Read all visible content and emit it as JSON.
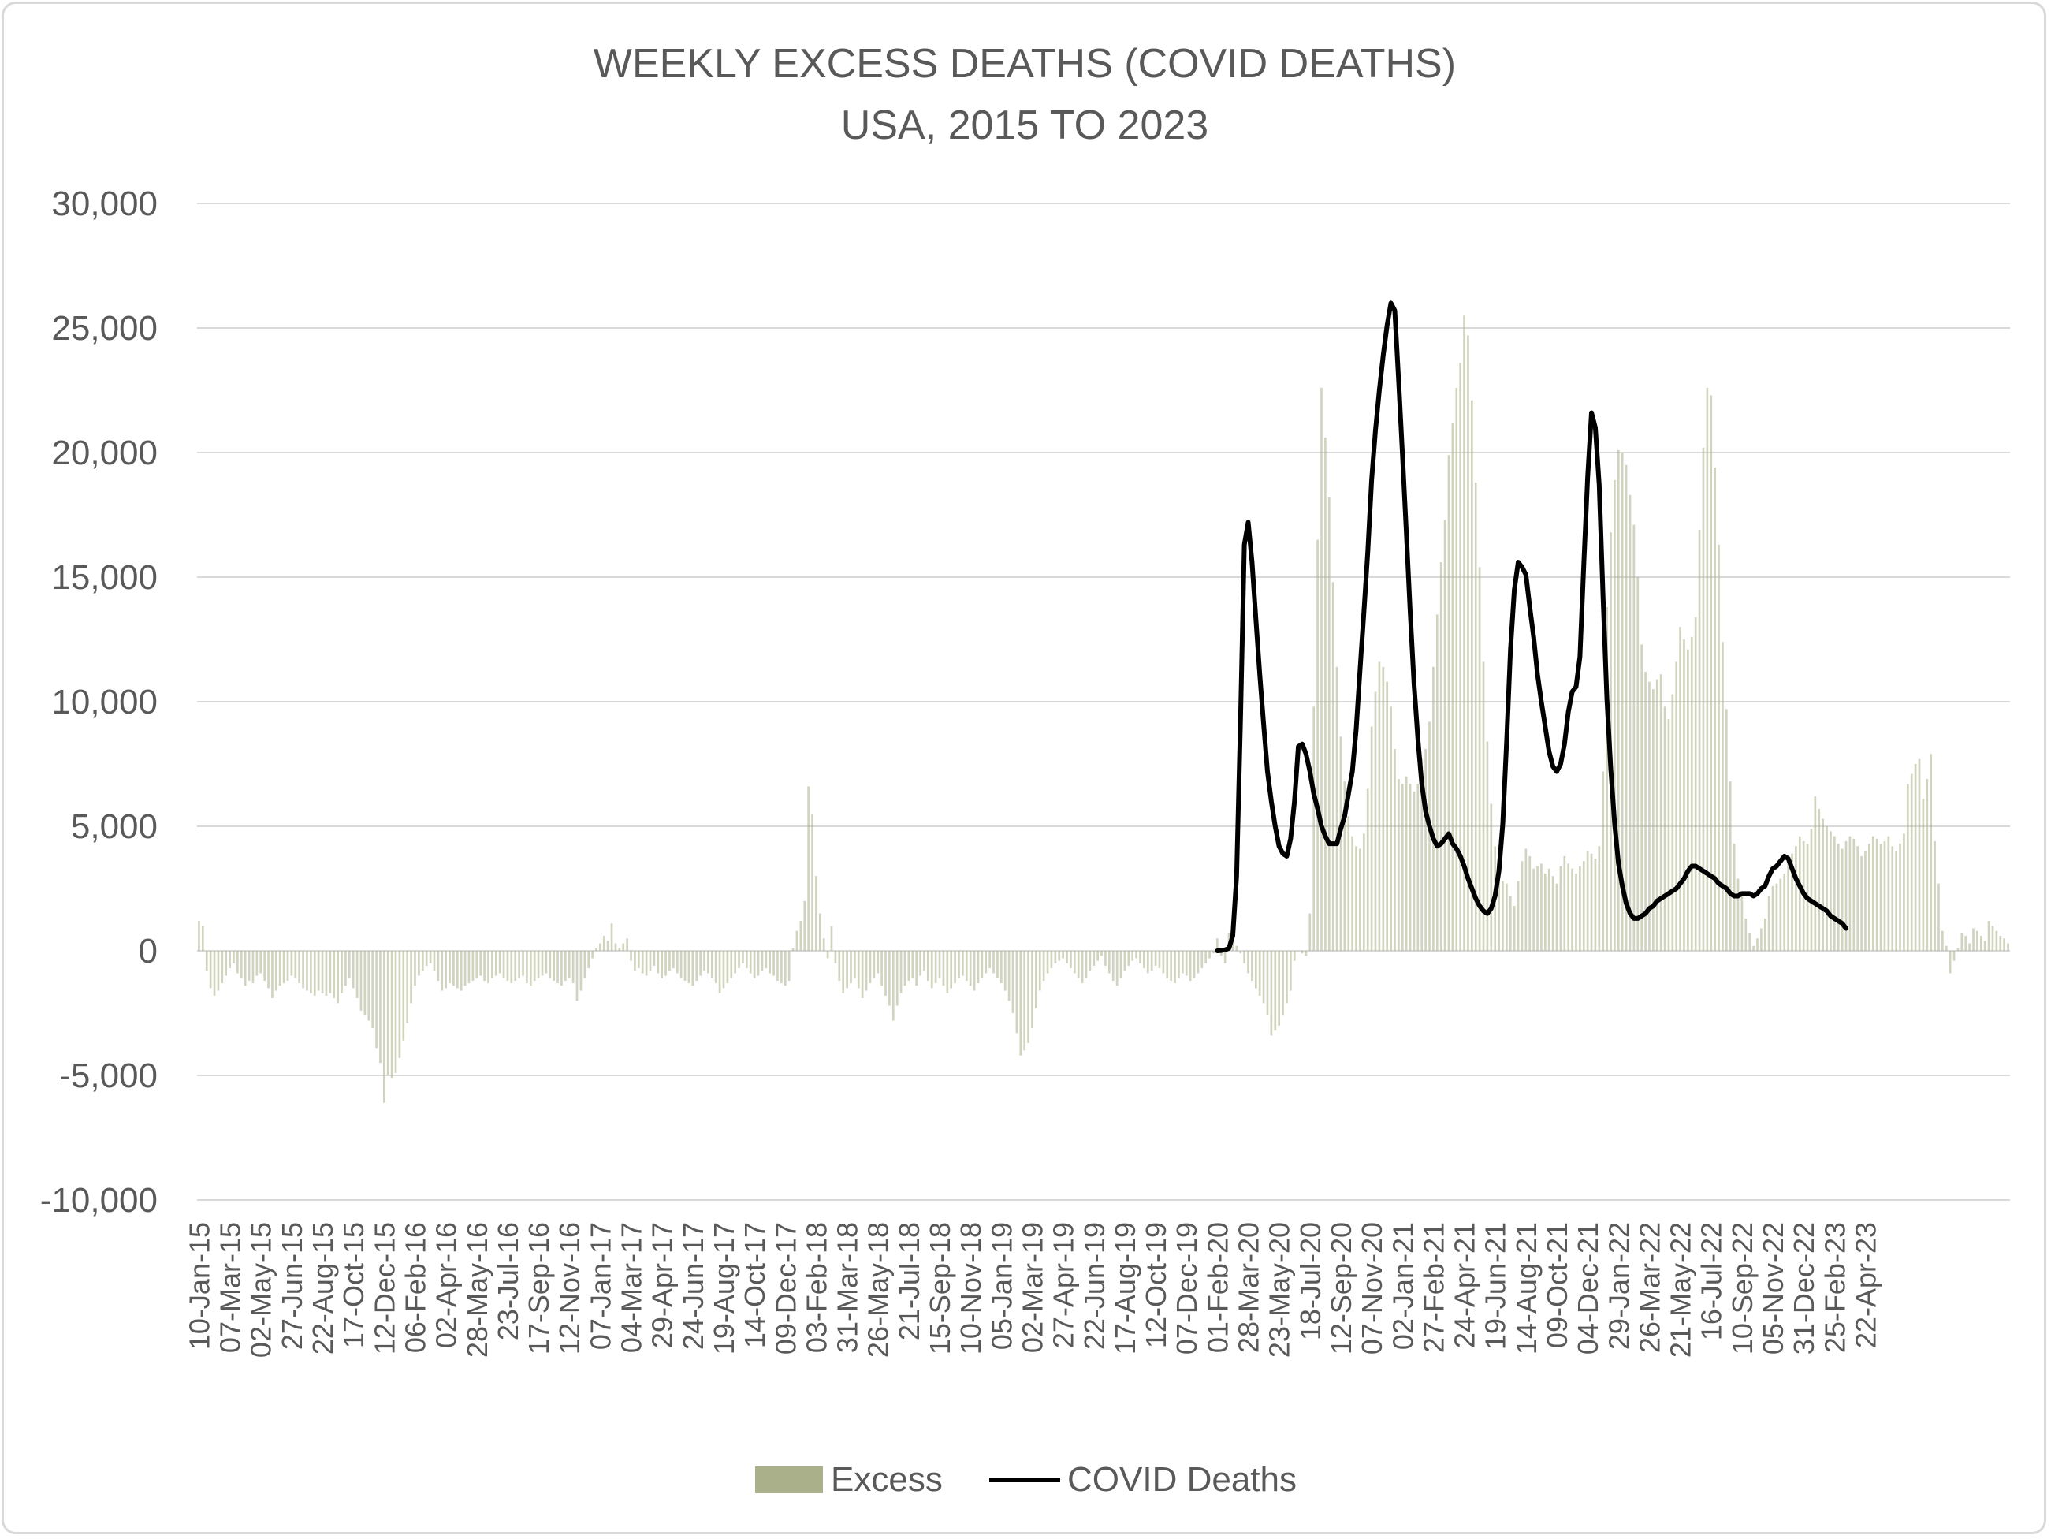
{
  "chart_data": {
    "type": "bar",
    "title": "WEEKLY EXCESS DEATHS (COVID DEATHS)",
    "subtitle": "USA, 2015 TO 2023",
    "ylim": [
      -10000,
      30000
    ],
    "y_ticks": [
      30000,
      25000,
      20000,
      15000,
      10000,
      5000,
      0,
      -5000,
      -10000
    ],
    "y_tick_labels": [
      "30,000",
      "25,000",
      "20,000",
      "15,000",
      "10,000",
      "5,000",
      "0",
      "-5,000",
      "-10,000"
    ],
    "x_tick_labels": [
      "10-Jan-15",
      "07-Mar-15",
      "02-May-15",
      "27-Jun-15",
      "22-Aug-15",
      "17-Oct-15",
      "12-Dec-15",
      "06-Feb-16",
      "02-Apr-16",
      "28-May-16",
      "23-Jul-16",
      "17-Sep-16",
      "12-Nov-16",
      "07-Jan-17",
      "04-Mar-17",
      "29-Apr-17",
      "24-Jun-17",
      "19-Aug-17",
      "14-Oct-17",
      "09-Dec-17",
      "03-Feb-18",
      "31-Mar-18",
      "26-May-18",
      "21-Jul-18",
      "15-Sep-18",
      "10-Nov-18",
      "05-Jan-19",
      "02-Mar-19",
      "27-Apr-19",
      "22-Jun-19",
      "17-Aug-19",
      "12-Oct-19",
      "07-Dec-19",
      "01-Feb-20",
      "28-Mar-20",
      "23-May-20",
      "18-Jul-20",
      "12-Sep-20",
      "07-Nov-20",
      "02-Jan-21",
      "27-Feb-21",
      "24-Apr-21",
      "19-Jun-21",
      "14-Aug-21",
      "09-Oct-21",
      "04-Dec-21",
      "29-Jan-22",
      "26-Mar-22",
      "21-May-22",
      "16-Jul-22",
      "10-Sep-22",
      "05-Nov-22",
      "31-Dec-22",
      "25-Feb-23",
      "22-Apr-23"
    ],
    "grid": true,
    "legend_position": "bottom",
    "series": [
      {
        "name": "Excess",
        "type": "bar",
        "color": "#aab08a",
        "start_week": "10-Jan-15",
        "interval": "weekly",
        "values": [
          1200,
          1000,
          -800,
          -1500,
          -1800,
          -1600,
          -1300,
          -1000,
          -700,
          -500,
          -900,
          -1100,
          -1400,
          -1200,
          -1300,
          -1000,
          -900,
          -1200,
          -1500,
          -1900,
          -1600,
          -1400,
          -1300,
          -1200,
          -1000,
          -1100,
          -1300,
          -1500,
          -1600,
          -1700,
          -1800,
          -1600,
          -1700,
          -1800,
          -1700,
          -1900,
          -2100,
          -1700,
          -1400,
          -1100,
          -1500,
          -1900,
          -2400,
          -2600,
          -2800,
          -3100,
          -3900,
          -4500,
          -6100,
          -5000,
          -5100,
          -4900,
          -4300,
          -3600,
          -2900,
          -2100,
          -1400,
          -1000,
          -800,
          -600,
          -500,
          -800,
          -1200,
          -1600,
          -1500,
          -1300,
          -1400,
          -1500,
          -1600,
          -1400,
          -1300,
          -1200,
          -1100,
          -1000,
          -1200,
          -1300,
          -1100,
          -1000,
          -900,
          -1100,
          -1200,
          -1300,
          -1200,
          -1100,
          -1000,
          -1300,
          -1400,
          -1200,
          -1100,
          -1000,
          -900,
          -1100,
          -1200,
          -1300,
          -1400,
          -1200,
          -1100,
          -1300,
          -2000,
          -1600,
          -1100,
          -700,
          -300,
          100,
          300,
          600,
          400,
          1100,
          300,
          100,
          300,
          500,
          -400,
          -800,
          -700,
          -900,
          -1000,
          -800,
          -600,
          -900,
          -1100,
          -1000,
          -800,
          -700,
          -900,
          -1100,
          -1200,
          -1300,
          -1400,
          -1200,
          -1000,
          -800,
          -900,
          -1100,
          -1300,
          -1700,
          -1500,
          -1300,
          -1100,
          -900,
          -700,
          -500,
          -700,
          -900,
          -1100,
          -1000,
          -800,
          -700,
          -900,
          -1000,
          -1200,
          -1300,
          -1400,
          -1200,
          100,
          800,
          1200,
          2000,
          6600,
          5500,
          3000,
          1500,
          500,
          -300,
          1000,
          -500,
          -1200,
          -1700,
          -1500,
          -1300,
          -1100,
          -1500,
          -1900,
          -1600,
          -1300,
          -1100,
          -900,
          -1400,
          -1800,
          -2200,
          -2800,
          -2200,
          -1700,
          -1400,
          -1200,
          -1100,
          -1400,
          -1000,
          -800,
          -1200,
          -1500,
          -1300,
          -1100,
          -1400,
          -1700,
          -1500,
          -1300,
          -1100,
          -1000,
          -1200,
          -1400,
          -1600,
          -1300,
          -1100,
          -900,
          -700,
          -900,
          -1100,
          -1300,
          -1600,
          -2000,
          -2500,
          -3300,
          -4200,
          -4000,
          -3700,
          -3100,
          -2300,
          -1600,
          -1200,
          -900,
          -700,
          -500,
          -400,
          -300,
          -500,
          -700,
          -900,
          -1100,
          -1300,
          -1100,
          -800,
          -600,
          -400,
          -200,
          -600,
          -900,
          -1200,
          -1400,
          -1100,
          -800,
          -600,
          -400,
          -300,
          -500,
          -700,
          -900,
          -800,
          -600,
          -700,
          -900,
          -1100,
          -1200,
          -1300,
          -1100,
          -900,
          -1000,
          -1200,
          -1100,
          -900,
          -700,
          -500,
          -300,
          -100,
          500,
          -200,
          -500,
          700,
          400,
          200,
          -100,
          -500,
          -900,
          -1200,
          -1500,
          -1800,
          -2100,
          -2600,
          -3400,
          -3200,
          -3000,
          -2600,
          -2100,
          -1600,
          -400,
          0,
          -100,
          -200,
          1500,
          9800,
          16500,
          22600,
          20600,
          18200,
          14800,
          11400,
          8600,
          6800,
          5400,
          4600,
          4200,
          4100,
          4700,
          6500,
          9000,
          10400,
          11600,
          11400,
          10800,
          9800,
          8100,
          6900,
          6700,
          7000,
          6700,
          6400,
          6700,
          7700,
          8100,
          9200,
          11400,
          13500,
          15600,
          17300,
          19900,
          21200,
          22600,
          23600,
          25500,
          24700,
          22100,
          18800,
          15400,
          11600,
          8400,
          5900,
          4200,
          3700,
          2800,
          2700,
          2200,
          1800,
          2800,
          3600,
          4100,
          3800,
          3300,
          3400,
          3500,
          3100,
          3300,
          3000,
          2700,
          3400,
          3800,
          3500,
          3300,
          3100,
          3400,
          3600,
          4000,
          3900,
          3700,
          4200,
          7200,
          13800,
          16800,
          18900,
          20100,
          20000,
          19500,
          18300,
          17100,
          15000,
          12300,
          11200,
          10800,
          10500,
          10900,
          11100,
          9800,
          9300,
          10300,
          11600,
          13000,
          12500,
          12100,
          12600,
          13400,
          16900,
          20200,
          22600,
          22300,
          19400,
          16300,
          12400,
          9700,
          6800,
          4300,
          2900,
          2200,
          1300,
          700,
          200,
          500,
          900,
          1300,
          2200,
          2600,
          2700,
          2900,
          3100,
          3600,
          3900,
          4200,
          4600,
          4400,
          4300,
          4900,
          6200,
          5700,
          5300,
          5000,
          4800,
          4600,
          4300,
          4100,
          4400,
          4600,
          4500,
          4200,
          3800,
          4000,
          4300,
          4600,
          4500,
          4300,
          4400,
          4600,
          4200,
          4000,
          4300,
          4700,
          6700,
          7100,
          7500,
          7700,
          6100,
          6900,
          7900,
          4400,
          2700,
          800,
          200,
          -900,
          -400,
          100,
          700,
          600,
          300,
          900,
          800,
          600,
          400,
          1200,
          1000,
          800,
          600,
          500,
          300
        ]
      },
      {
        "name": "COVID Deaths",
        "type": "line",
        "color": "#000000",
        "start_week": "01-Feb-20",
        "interval": "weekly",
        "values": [
          0,
          10,
          40,
          100,
          600,
          3000,
          9200,
          16300,
          17200,
          15600,
          13300,
          11100,
          9100,
          7200,
          6000,
          5000,
          4200,
          3900,
          3800,
          4500,
          6000,
          8200,
          8300,
          7900,
          7200,
          6300,
          5700,
          5000,
          4600,
          4300,
          4300,
          4300,
          4900,
          5400,
          6300,
          7200,
          8900,
          11300,
          13600,
          16000,
          18900,
          20900,
          22500,
          23900,
          25100,
          26000,
          25700,
          22900,
          19900,
          16800,
          13600,
          10700,
          8500,
          6700,
          5600,
          5000,
          4500,
          4200,
          4300,
          4500,
          4700,
          4300,
          4100,
          3800,
          3400,
          2900,
          2500,
          2100,
          1800,
          1600,
          1500,
          1700,
          2200,
          3200,
          5100,
          8400,
          12100,
          14500,
          15600,
          15400,
          15100,
          13800,
          12600,
          11100,
          10000,
          9000,
          8000,
          7400,
          7200,
          7500,
          8300,
          9600,
          10400,
          10600,
          11800,
          15500,
          19000,
          21600,
          21000,
          18700,
          14200,
          10100,
          7300,
          5100,
          3500,
          2600,
          1900,
          1500,
          1300,
          1300,
          1400,
          1500,
          1700,
          1800,
          2000,
          2100,
          2200,
          2300,
          2400,
          2500,
          2700,
          2900,
          3200,
          3400,
          3400,
          3300,
          3200,
          3100,
          3000,
          2900,
          2700,
          2600,
          2500,
          2300,
          2200,
          2200,
          2300,
          2300,
          2300,
          2200,
          2300,
          2500,
          2600,
          3000,
          3300,
          3400,
          3600,
          3800,
          3700,
          3300,
          2900,
          2600,
          2300,
          2100,
          2000,
          1900,
          1800,
          1700,
          1600,
          1400,
          1300,
          1200,
          1100,
          900
        ]
      }
    ]
  }
}
